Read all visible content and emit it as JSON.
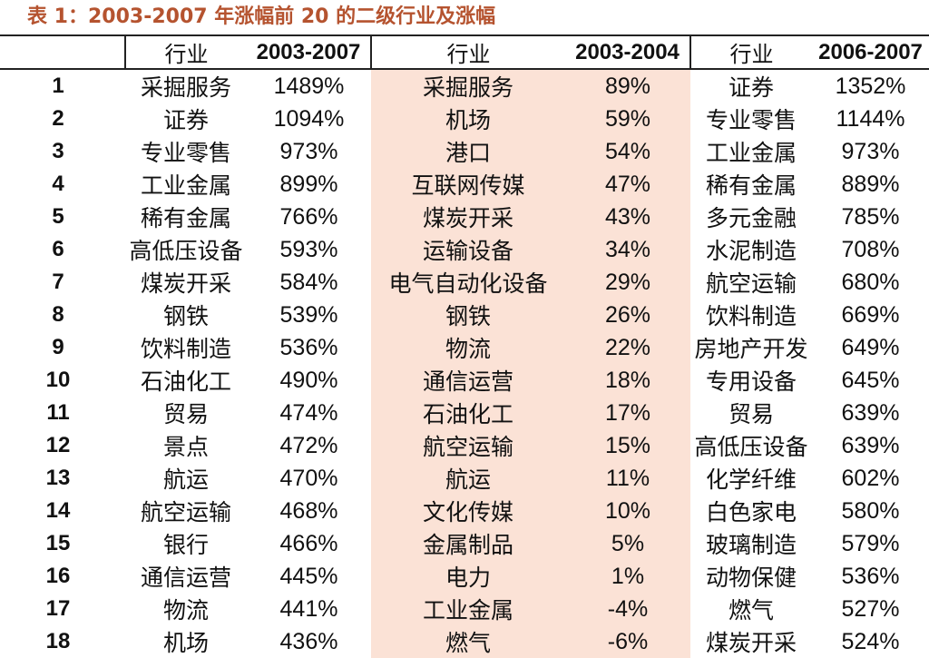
{
  "caption": "表 1：2003-2007 年涨幅前 20 的二级行业及涨幅",
  "headers": {
    "industry": "行业",
    "period1": "2003-2007",
    "period2": "2003-2004",
    "period3": "2006-2007"
  },
  "colors": {
    "caption": "#b5532f",
    "highlight_column": "#fbe2d6"
  },
  "rows": [
    {
      "rank": "1",
      "a_name": "采掘服务",
      "a_pct": "1489%",
      "b_name": "采掘服务",
      "b_pct": "89%",
      "c_name": "证券",
      "c_pct": "1352%"
    },
    {
      "rank": "2",
      "a_name": "证券",
      "a_pct": "1094%",
      "b_name": "机场",
      "b_pct": "59%",
      "c_name": "专业零售",
      "c_pct": "1144%"
    },
    {
      "rank": "3",
      "a_name": "专业零售",
      "a_pct": "973%",
      "b_name": "港口",
      "b_pct": "54%",
      "c_name": "工业金属",
      "c_pct": "973%"
    },
    {
      "rank": "4",
      "a_name": "工业金属",
      "a_pct": "899%",
      "b_name": "互联网传媒",
      "b_pct": "47%",
      "c_name": "稀有金属",
      "c_pct": "889%"
    },
    {
      "rank": "5",
      "a_name": "稀有金属",
      "a_pct": "766%",
      "b_name": "煤炭开采",
      "b_pct": "43%",
      "c_name": "多元金融",
      "c_pct": "785%"
    },
    {
      "rank": "6",
      "a_name": "高低压设备",
      "a_pct": "593%",
      "b_name": "运输设备",
      "b_pct": "34%",
      "c_name": "水泥制造",
      "c_pct": "708%"
    },
    {
      "rank": "7",
      "a_name": "煤炭开采",
      "a_pct": "584%",
      "b_name": "电气自动化设备",
      "b_pct": "29%",
      "c_name": "航空运输",
      "c_pct": "680%"
    },
    {
      "rank": "8",
      "a_name": "钢铁",
      "a_pct": "539%",
      "b_name": "钢铁",
      "b_pct": "26%",
      "c_name": "饮料制造",
      "c_pct": "669%"
    },
    {
      "rank": "9",
      "a_name": "饮料制造",
      "a_pct": "536%",
      "b_name": "物流",
      "b_pct": "22%",
      "c_name": "房地产开发",
      "c_pct": "649%"
    },
    {
      "rank": "10",
      "a_name": "石油化工",
      "a_pct": "490%",
      "b_name": "通信运营",
      "b_pct": "18%",
      "c_name": "专用设备",
      "c_pct": "645%"
    },
    {
      "rank": "11",
      "a_name": "贸易",
      "a_pct": "474%",
      "b_name": "石油化工",
      "b_pct": "17%",
      "c_name": "贸易",
      "c_pct": "639%"
    },
    {
      "rank": "12",
      "a_name": "景点",
      "a_pct": "472%",
      "b_name": "航空运输",
      "b_pct": "15%",
      "c_name": "高低压设备",
      "c_pct": "639%"
    },
    {
      "rank": "13",
      "a_name": "航运",
      "a_pct": "470%",
      "b_name": "航运",
      "b_pct": "11%",
      "c_name": "化学纤维",
      "c_pct": "602%"
    },
    {
      "rank": "14",
      "a_name": "航空运输",
      "a_pct": "468%",
      "b_name": "文化传媒",
      "b_pct": "10%",
      "c_name": "白色家电",
      "c_pct": "580%"
    },
    {
      "rank": "15",
      "a_name": "银行",
      "a_pct": "466%",
      "b_name": "金属制品",
      "b_pct": "5%",
      "c_name": "玻璃制造",
      "c_pct": "579%"
    },
    {
      "rank": "16",
      "a_name": "通信运营",
      "a_pct": "445%",
      "b_name": "电力",
      "b_pct": "1%",
      "c_name": "动物保健",
      "c_pct": "536%"
    },
    {
      "rank": "17",
      "a_name": "物流",
      "a_pct": "441%",
      "b_name": "工业金属",
      "b_pct": "-4%",
      "c_name": "燃气",
      "c_pct": "527%"
    },
    {
      "rank": "18",
      "a_name": "机场",
      "a_pct": "436%",
      "b_name": "燃气",
      "b_pct": "-6%",
      "c_name": "煤炭开采",
      "c_pct": "524%"
    }
  ]
}
